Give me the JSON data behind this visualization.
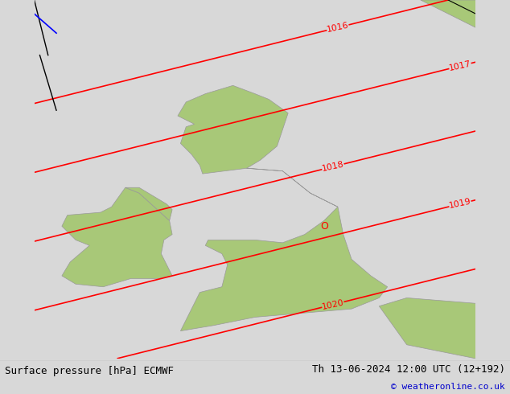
{
  "title_left": "Surface pressure [hPa] ECMWF",
  "title_right": "Th 13-06-2024 12:00 UTC (12+192)",
  "copyright": "© weatheronline.co.uk",
  "bg_color": "#d8d8d8",
  "land_color_green": "#a8c878",
  "land_color_gray": "#b8b8b8",
  "contour_color": "#ff0000",
  "contour_linewidth": 1.2,
  "label_fontsize": 8,
  "footer_fontsize": 9,
  "pressure_levels": [
    1016,
    1017,
    1018,
    1019,
    1020
  ],
  "figsize": [
    6.34,
    4.9
  ],
  "dpi": 100
}
